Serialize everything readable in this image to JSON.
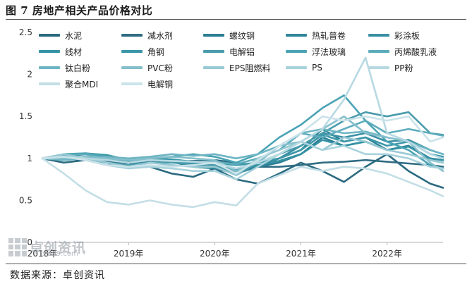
{
  "title": "图 7 房地产相关产品价格对比",
  "source": "数据来源：卓创资讯",
  "watermark": {
    "name": "卓创资讯",
    "url": "sci99.com"
  },
  "chart_data": {
    "type": "line",
    "title": "图 7 房地产相关产品价格对比",
    "xlabel": "",
    "ylabel": "",
    "ylim": [
      0,
      2.5
    ],
    "yticks": [
      0,
      0.5,
      1,
      1.5,
      2,
      2.5
    ],
    "x_ticks": [
      "2018年",
      "2019年",
      "2020年",
      "2021年",
      "2022年"
    ],
    "x_tick_positions": [
      2018.0,
      2019.0,
      2020.0,
      2021.0,
      2022.0
    ],
    "xlim": [
      2018.0,
      2022.65
    ],
    "grid": false,
    "legend_position": "top",
    "x": [
      2018.0,
      2018.25,
      2018.5,
      2018.75,
      2019.0,
      2019.25,
      2019.5,
      2019.75,
      2020.0,
      2020.25,
      2020.5,
      2020.75,
      2021.0,
      2021.25,
      2021.5,
      2021.75,
      2022.0,
      2022.25,
      2022.5,
      2022.65
    ],
    "series": [
      {
        "name": "水泥",
        "color": "#2a6a80",
        "values": [
          1.0,
          0.95,
          0.98,
          0.92,
          0.95,
          0.9,
          0.82,
          0.78,
          0.88,
          0.75,
          0.7,
          0.82,
          0.95,
          0.85,
          0.72,
          0.9,
          1.05,
          0.85,
          0.7,
          0.65
        ]
      },
      {
        "name": "减水剂",
        "color": "#306d84",
        "values": [
          1.0,
          1.0,
          0.98,
          0.96,
          0.95,
          0.95,
          0.96,
          0.97,
          0.98,
          0.95,
          0.9,
          0.9,
          0.92,
          0.95,
          0.96,
          0.98,
          0.96,
          0.94,
          0.92,
          0.9
        ]
      },
      {
        "name": "螺纹钢",
        "color": "#2b7e95",
        "values": [
          1.0,
          1.02,
          1.05,
          1.0,
          0.95,
          1.0,
          0.98,
          0.92,
          0.88,
          0.85,
          0.9,
          0.95,
          1.05,
          1.25,
          1.15,
          1.2,
          1.1,
          1.15,
          1.0,
          0.98
        ]
      },
      {
        "name": "热轧普卷",
        "color": "#2f8699",
        "values": [
          1.0,
          1.02,
          1.0,
          0.95,
          0.92,
          0.98,
          0.96,
          0.9,
          0.88,
          0.82,
          0.9,
          1.0,
          1.1,
          1.35,
          1.2,
          1.25,
          1.1,
          1.15,
          0.98,
          0.95
        ]
      },
      {
        "name": "彩涂板",
        "color": "#3a8fa3",
        "values": [
          1.0,
          1.0,
          1.02,
          1.0,
          0.98,
          0.97,
          0.96,
          0.95,
          0.95,
          0.92,
          0.95,
          1.0,
          1.15,
          1.3,
          1.25,
          1.3,
          1.2,
          1.22,
          1.1,
          1.05
        ]
      },
      {
        "name": "线材",
        "color": "#3592a4",
        "values": [
          1.0,
          1.03,
          1.05,
          1.0,
          0.96,
          1.0,
          0.98,
          0.93,
          0.9,
          0.87,
          0.92,
          0.97,
          1.05,
          1.22,
          1.15,
          1.2,
          1.1,
          1.14,
          1.0,
          0.98
        ]
      },
      {
        "name": "角钢",
        "color": "#3b97a8",
        "values": [
          1.0,
          1.03,
          1.06,
          1.04,
          0.98,
          1.0,
          0.99,
          0.96,
          0.95,
          0.92,
          0.95,
          1.0,
          1.1,
          1.28,
          1.2,
          1.25,
          1.15,
          1.2,
          1.05,
          1.02
        ]
      },
      {
        "name": "电解铝",
        "color": "#4a9cac",
        "values": [
          1.0,
          1.02,
          0.98,
          0.95,
          0.92,
          0.95,
          0.95,
          0.93,
          0.92,
          0.8,
          0.95,
          1.05,
          1.15,
          1.3,
          1.45,
          1.55,
          1.5,
          1.55,
          1.3,
          1.28
        ]
      },
      {
        "name": "浮法玻璃",
        "color": "#4aa3b4",
        "values": [
          1.0,
          1.05,
          1.06,
          1.02,
          0.98,
          1.0,
          1.02,
          1.05,
          1.02,
          0.95,
          1.05,
          1.25,
          1.4,
          1.6,
          1.75,
          1.45,
          1.2,
          1.1,
          0.92,
          0.88
        ]
      },
      {
        "name": "丙烯酸乳液",
        "color": "#5cacbc",
        "values": [
          1.0,
          1.04,
          1.05,
          1.0,
          0.98,
          0.98,
          0.97,
          0.96,
          0.96,
          0.93,
          1.0,
          1.1,
          1.3,
          1.25,
          1.35,
          1.45,
          1.3,
          1.35,
          1.3,
          1.27
        ]
      },
      {
        "name": "钛白粉",
        "color": "#6db5c3",
        "values": [
          1.0,
          0.98,
          1.0,
          1.02,
          1.0,
          1.02,
          1.05,
          1.03,
          1.05,
          1.0,
          1.05,
          1.15,
          1.3,
          1.35,
          1.3,
          1.32,
          1.25,
          1.2,
          1.1,
          1.05
        ]
      },
      {
        "name": "PVC粉",
        "color": "#85bfcb",
        "values": [
          1.0,
          1.0,
          1.02,
          1.0,
          0.98,
          1.0,
          1.02,
          1.0,
          0.98,
          0.85,
          0.95,
          1.15,
          1.2,
          1.35,
          1.5,
          1.3,
          1.25,
          1.2,
          0.95,
          0.85
        ]
      },
      {
        "name": "EPS阻燃料",
        "color": "#98c9d4",
        "values": [
          1.0,
          1.05,
          1.0,
          0.95,
          0.9,
          0.95,
          0.92,
          0.9,
          0.9,
          0.8,
          1.0,
          1.1,
          1.2,
          1.1,
          1.25,
          1.2,
          1.1,
          1.05,
          0.98,
          0.95
        ]
      },
      {
        "name": "PS",
        "color": "#a8d2dc",
        "values": [
          1.0,
          1.02,
          0.98,
          0.92,
          0.88,
          0.9,
          0.88,
          0.85,
          0.85,
          0.75,
          0.9,
          1.05,
          1.2,
          1.1,
          1.15,
          1.05,
          1.05,
          1.0,
          0.9,
          0.88
        ]
      },
      {
        "name": "PP粉",
        "color": "#b7d9e2",
        "values": [
          1.0,
          1.02,
          1.0,
          0.98,
          0.95,
          0.98,
          0.97,
          0.96,
          0.95,
          0.88,
          0.95,
          1.05,
          1.2,
          1.35,
          1.7,
          2.2,
          1.3,
          1.2,
          1.05,
          1.0
        ]
      },
      {
        "name": "聚合MDI",
        "color": "#c3dee6",
        "values": [
          1.0,
          0.82,
          0.62,
          0.48,
          0.45,
          0.5,
          0.45,
          0.42,
          0.48,
          0.44,
          0.7,
          0.8,
          0.9,
          0.85,
          0.9,
          0.88,
          0.82,
          0.72,
          0.62,
          0.55
        ]
      },
      {
        "name": "电解铜",
        "color": "#cbe3ea",
        "values": [
          1.0,
          1.02,
          0.98,
          0.92,
          0.9,
          0.92,
          0.9,
          0.92,
          0.95,
          0.82,
          0.98,
          1.15,
          1.3,
          1.5,
          1.45,
          1.5,
          1.45,
          1.5,
          1.2,
          1.25
        ]
      }
    ]
  }
}
